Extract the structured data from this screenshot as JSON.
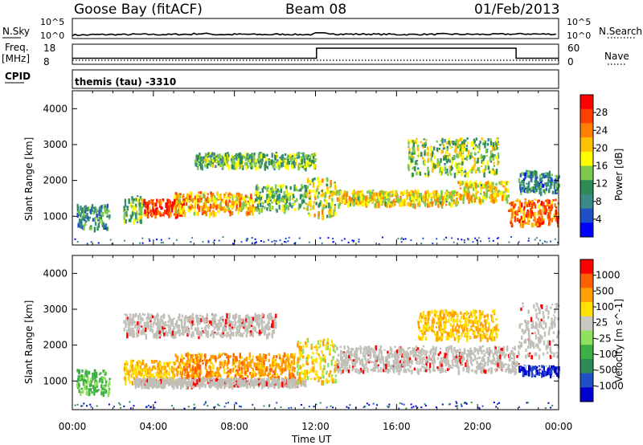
{
  "header": {
    "station": "Goose Bay (fitACF)",
    "beam": "Beam 08",
    "date": "01/Feb/2013"
  },
  "panels": {
    "nsky": {
      "left_label": "N.Sky",
      "right_label": "N.Search",
      "left_ticks": [
        "10^5",
        "10^0"
      ],
      "right_ticks": [
        "10^5",
        "10^0"
      ]
    },
    "freq": {
      "left_label_1": "Freq.",
      "left_label_2": "[MHz]",
      "right_label": "Nave",
      "left_ticks": [
        "18",
        "8"
      ],
      "right_ticks": [
        "60",
        "0"
      ]
    },
    "cpid": {
      "label": "CPID",
      "value": "themis (tau) -3310"
    }
  },
  "colors": {
    "power": [
      "#0000ff",
      "#2050c8",
      "#3a8a8a",
      "#2e8b57",
      "#7ec850",
      "#ffff00",
      "#ffc000",
      "#ff8000",
      "#ff4000",
      "#ff0000"
    ],
    "velocity": [
      "#0000cc",
      "#2050c8",
      "#2e8b57",
      "#3cb043",
      "#90e060",
      "#c8c8c0",
      "#ffe000",
      "#ffa000",
      "#ff6000",
      "#ff0000"
    ],
    "ground_scatter": "#c0c0b8"
  },
  "chart_data": [
    {
      "type": "line",
      "title": "N.Sky / N.Search",
      "x_range": [
        "00:00",
        "24:00"
      ],
      "series": [
        {
          "name": "N.Sky",
          "x": [
            0,
            1,
            2,
            3,
            4,
            5,
            6,
            7,
            8,
            9,
            10,
            11,
            12,
            13,
            14,
            15,
            16,
            17,
            18,
            19,
            20,
            21,
            22,
            23,
            24
          ],
          "values_log10": [
            0.9,
            1.0,
            1.0,
            1.05,
            1.0,
            1.05,
            1.2,
            1.0,
            1.05,
            1.0,
            1.05,
            1.0,
            1.3,
            1.1,
            1.1,
            1.05,
            1.0,
            1.05,
            1.1,
            1.05,
            1.05,
            1.1,
            1.15,
            1.1,
            1.05
          ]
        }
      ]
    },
    {
      "type": "line",
      "title": "Freq / Nave",
      "series": [
        {
          "name": "Freq.",
          "x": [
            0,
            12.05,
            12.05,
            21.9,
            21.9,
            24
          ],
          "values": [
            11,
            11,
            16,
            16,
            11,
            11
          ]
        },
        {
          "name": "Nave",
          "x": [
            0,
            24
          ],
          "values": [
            12,
            12
          ]
        }
      ],
      "ylim_freq": [
        8,
        18
      ],
      "ylim_nave": [
        0,
        60
      ]
    },
    {
      "type": "heatmap",
      "variable": "Power",
      "ylabel": "Slant Range [km]",
      "colorbar_label": "Power [dB]",
      "colorbar_ticks": [
        "28",
        "24",
        "20",
        "16",
        "12",
        "8",
        "4"
      ],
      "x_range": [
        0,
        24
      ],
      "ylim": [
        200,
        4500
      ],
      "y_ticks": [
        1000,
        2000,
        3000,
        4000
      ],
      "bands": [
        {
          "t0": 0.2,
          "t1": 1.8,
          "r0": 700,
          "r1": 1350,
          "level": 8
        },
        {
          "t0": 2.5,
          "t1": 3.5,
          "r0": 900,
          "r1": 1600,
          "level": 12
        },
        {
          "t0": 3.5,
          "t1": 5.5,
          "r0": 1050,
          "r1": 1500,
          "level": 26
        },
        {
          "t0": 5.0,
          "t1": 9.0,
          "r0": 1100,
          "r1": 1700,
          "level": 20
        },
        {
          "t0": 9.0,
          "t1": 11.5,
          "r0": 1200,
          "r1": 1900,
          "level": 12
        },
        {
          "t0": 11.5,
          "t1": 13.0,
          "r0": 1000,
          "r1": 2100,
          "level": 16
        },
        {
          "t0": 13.0,
          "t1": 19.0,
          "r0": 1350,
          "r1": 1750,
          "level": 18
        },
        {
          "t0": 19.0,
          "t1": 21.5,
          "r0": 1450,
          "r1": 2000,
          "level": 18
        },
        {
          "t0": 21.5,
          "t1": 24.0,
          "r0": 800,
          "r1": 1500,
          "level": 24
        },
        {
          "t0": 22.0,
          "t1": 24.0,
          "r0": 1700,
          "r1": 2300,
          "level": 8
        },
        {
          "t0": 6.0,
          "t1": 12.0,
          "r0": 2400,
          "r1": 2800,
          "level": 12
        },
        {
          "t0": 16.5,
          "t1": 21.0,
          "r0": 2200,
          "r1": 3200,
          "level": 14
        }
      ]
    },
    {
      "type": "heatmap",
      "variable": "Velocity",
      "ylabel": "Slant Range [km]",
      "xlabel": "Time UT",
      "colorbar_label": "Velocity [m s^-1]",
      "colorbar_ticks": [
        "1000",
        "500",
        "100",
        "25",
        "-25",
        "-100",
        "-500",
        "-1000"
      ],
      "x_ticks": [
        "00:00",
        "04:00",
        "08:00",
        "12:00",
        "16:00",
        "20:00",
        "00:00"
      ],
      "x_range": [
        0,
        24
      ],
      "ylim": [
        200,
        4500
      ],
      "y_ticks": [
        1000,
        2000,
        3000,
        4000
      ],
      "bands": [
        {
          "t0": 0.2,
          "t1": 1.8,
          "r0": 700,
          "r1": 1350,
          "vel": 100
        },
        {
          "t0": 2.5,
          "t1": 5.0,
          "r0": 1000,
          "r1": 1600,
          "vel": -300
        },
        {
          "t0": 5.0,
          "t1": 11.0,
          "r0": 1100,
          "r1": 1800,
          "vel": -500
        },
        {
          "t0": 3.0,
          "t1": 11.5,
          "r0": 900,
          "r1": 1100,
          "vel": 0
        },
        {
          "t0": 11.0,
          "t1": 13.0,
          "r0": 1000,
          "r1": 2200,
          "vel": -100
        },
        {
          "t0": 13.0,
          "t1": 22.0,
          "r0": 1300,
          "r1": 2000,
          "vel": 0
        },
        {
          "t0": 22.0,
          "t1": 24.0,
          "r0": 1700,
          "r1": 3200,
          "vel": 0
        },
        {
          "t0": 22.0,
          "t1": 24.0,
          "r0": 1200,
          "r1": 1450,
          "vel": 1000
        },
        {
          "t0": 2.5,
          "t1": 10.0,
          "r0": 2300,
          "r1": 2900,
          "vel": 0
        },
        {
          "t0": 17.0,
          "t1": 21.0,
          "r0": 2200,
          "r1": 3000,
          "vel": -200
        }
      ]
    }
  ]
}
